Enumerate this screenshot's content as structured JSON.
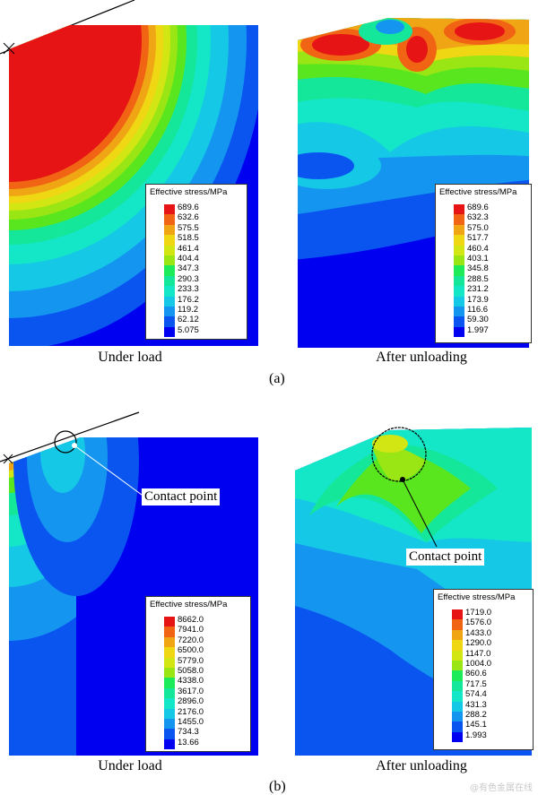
{
  "palette": [
    "#0000f0",
    "#0a55f0",
    "#1496f0",
    "#14c8e6",
    "#14e6c8",
    "#14e69a",
    "#1eeb5a",
    "#5ae61e",
    "#9ae614",
    "#d2e614",
    "#f0d714",
    "#f0a514",
    "#f06414",
    "#e61414"
  ],
  "panels": [
    {
      "id": "a-left",
      "legend_title": "Effective stress/MPa",
      "ticks": [
        "689.6",
        "632.6",
        "575.5",
        "518.5",
        "461.4",
        "404.4",
        "347.3",
        "290.3",
        "233.3",
        "176.2",
        "119.2",
        "62.12",
        "5.075"
      ],
      "caption": "Under load"
    },
    {
      "id": "a-right",
      "legend_title": "Effective stress/MPa",
      "ticks": [
        "689.6",
        "632.3",
        "575.0",
        "517.7",
        "460.4",
        "403.1",
        "345.8",
        "288.5",
        "231.2",
        "173.9",
        "116.6",
        "59.30",
        "1.997"
      ],
      "caption": "After unloading"
    },
    {
      "id": "b-left",
      "legend_title": "Effective stress/MPa",
      "ticks": [
        "8662.0",
        "7941.0",
        "7220.0",
        "6500.0",
        "5779.0",
        "5058.0",
        "4338.0",
        "3617.0",
        "2896.0",
        "2176.0",
        "1455.0",
        "734.3",
        "13.66"
      ],
      "caption": "Under load",
      "callout": "Contact point"
    },
    {
      "id": "b-right",
      "legend_title": "Effective stress/MPa",
      "ticks": [
        "1719.0",
        "1576.0",
        "1433.0",
        "1290.0",
        "1147.0",
        "1004.0",
        "860.6",
        "717.5",
        "574.4",
        "431.3",
        "288.2",
        "145.1",
        "1.993"
      ],
      "caption": "After unloading",
      "callout": "Contact point"
    }
  ],
  "subfig_labels": [
    "(a)",
    "(b)"
  ],
  "watermark": "@有色金属在线"
}
